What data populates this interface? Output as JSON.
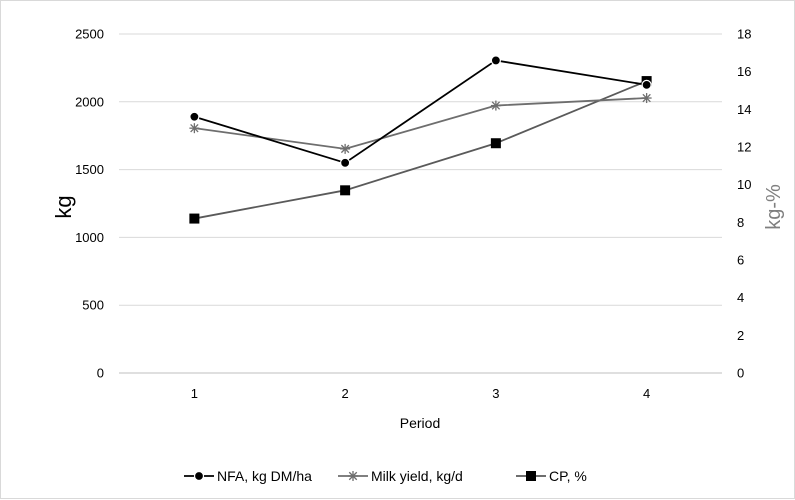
{
  "chart_data": {
    "type": "line",
    "title": "",
    "xlabel": "Period",
    "ylabel": "kg",
    "y2label": "kg-%",
    "categories": [
      "1",
      "2",
      "3",
      "4"
    ],
    "ylim": [
      0,
      2500
    ],
    "y_ticks": [
      "0",
      "500",
      "1000",
      "1500",
      "2000",
      "2500"
    ],
    "y2lim": [
      0,
      18
    ],
    "y2_ticks": [
      "0",
      "2",
      "4",
      "6",
      "8",
      "10",
      "12",
      "14",
      "16",
      "18"
    ],
    "grid": true,
    "legend_position": "bottom",
    "series": [
      {
        "name": "NFA, kg DM/ha",
        "axis": "left",
        "values": [
          1890,
          1550,
          2305,
          2125
        ],
        "color": "#000000",
        "marker": "circle"
      },
      {
        "name": "Milk yield, kg/d",
        "axis": "right",
        "values": [
          13.0,
          11.9,
          14.2,
          14.6
        ],
        "color": "#6e6e6e",
        "marker": "star"
      },
      {
        "name": "CP, %",
        "axis": "right",
        "values": [
          8.2,
          9.7,
          12.2,
          15.5
        ],
        "color": "#5a5a5a",
        "marker": "square"
      }
    ]
  }
}
